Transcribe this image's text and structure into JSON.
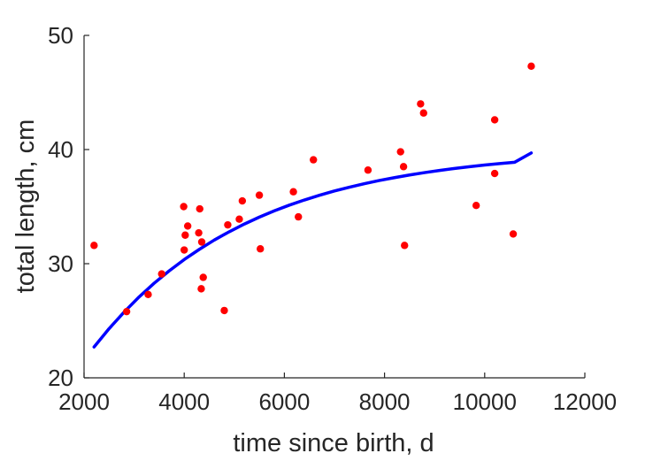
{
  "chart_data": {
    "type": "scatter",
    "title": "",
    "xlabel": "time since birth, d",
    "ylabel": "total length, cm",
    "xlim": [
      2000,
      12000
    ],
    "ylim": [
      20,
      50
    ],
    "xticks": [
      2000,
      4000,
      6000,
      8000,
      10000,
      12000
    ],
    "yticks": [
      20,
      30,
      40,
      50
    ],
    "grid": false,
    "legend": "none",
    "colors": {
      "points": "#ff0000",
      "fit": "#0000ff",
      "axis": "#262626"
    },
    "series": [
      {
        "type": "scatter",
        "points": [
          [
            2200,
            31.6
          ],
          [
            2850,
            25.8
          ],
          [
            3280,
            27.3
          ],
          [
            3550,
            29.1
          ],
          [
            3990,
            35.0
          ],
          [
            4000,
            31.2
          ],
          [
            4020,
            32.5
          ],
          [
            4070,
            33.3
          ],
          [
            4290,
            32.7
          ],
          [
            4310,
            34.8
          ],
          [
            4340,
            27.8
          ],
          [
            4350,
            31.9
          ],
          [
            4380,
            28.8
          ],
          [
            4800,
            25.9
          ],
          [
            4870,
            33.4
          ],
          [
            5100,
            33.9
          ],
          [
            5160,
            35.5
          ],
          [
            5500,
            36.0
          ],
          [
            5520,
            31.3
          ],
          [
            6180,
            36.3
          ],
          [
            6280,
            34.1
          ],
          [
            6580,
            39.1
          ],
          [
            7670,
            38.2
          ],
          [
            8320,
            39.8
          ],
          [
            8380,
            38.5
          ],
          [
            8400,
            31.6
          ],
          [
            8720,
            44.0
          ],
          [
            8780,
            43.2
          ],
          [
            9830,
            35.1
          ],
          [
            10200,
            42.6
          ],
          [
            10200,
            37.9
          ],
          [
            10570,
            32.6
          ],
          [
            10930,
            47.3
          ]
        ]
      },
      {
        "type": "line",
        "x": [
          2200,
          2500,
          2800,
          3100,
          3400,
          3700,
          4000,
          4300,
          4600,
          4900,
          5200,
          5500,
          5800,
          6100,
          6400,
          6700,
          7000,
          7300,
          7600,
          7900,
          8200,
          8500,
          8800,
          9100,
          9400,
          9700,
          10000,
          10300,
          10600,
          10930
        ],
        "y": [
          22.7,
          24.31,
          25.76,
          27.09,
          28.29,
          29.37,
          30.36,
          31.25,
          32.07,
          32.8,
          33.47,
          34.08,
          34.63,
          35.13,
          35.58,
          35.99,
          36.37,
          36.7,
          37.01,
          37.29,
          37.54,
          37.77,
          37.98,
          38.17,
          38.34,
          38.5,
          38.64,
          38.77,
          38.89,
          39.7
        ]
      }
    ]
  }
}
